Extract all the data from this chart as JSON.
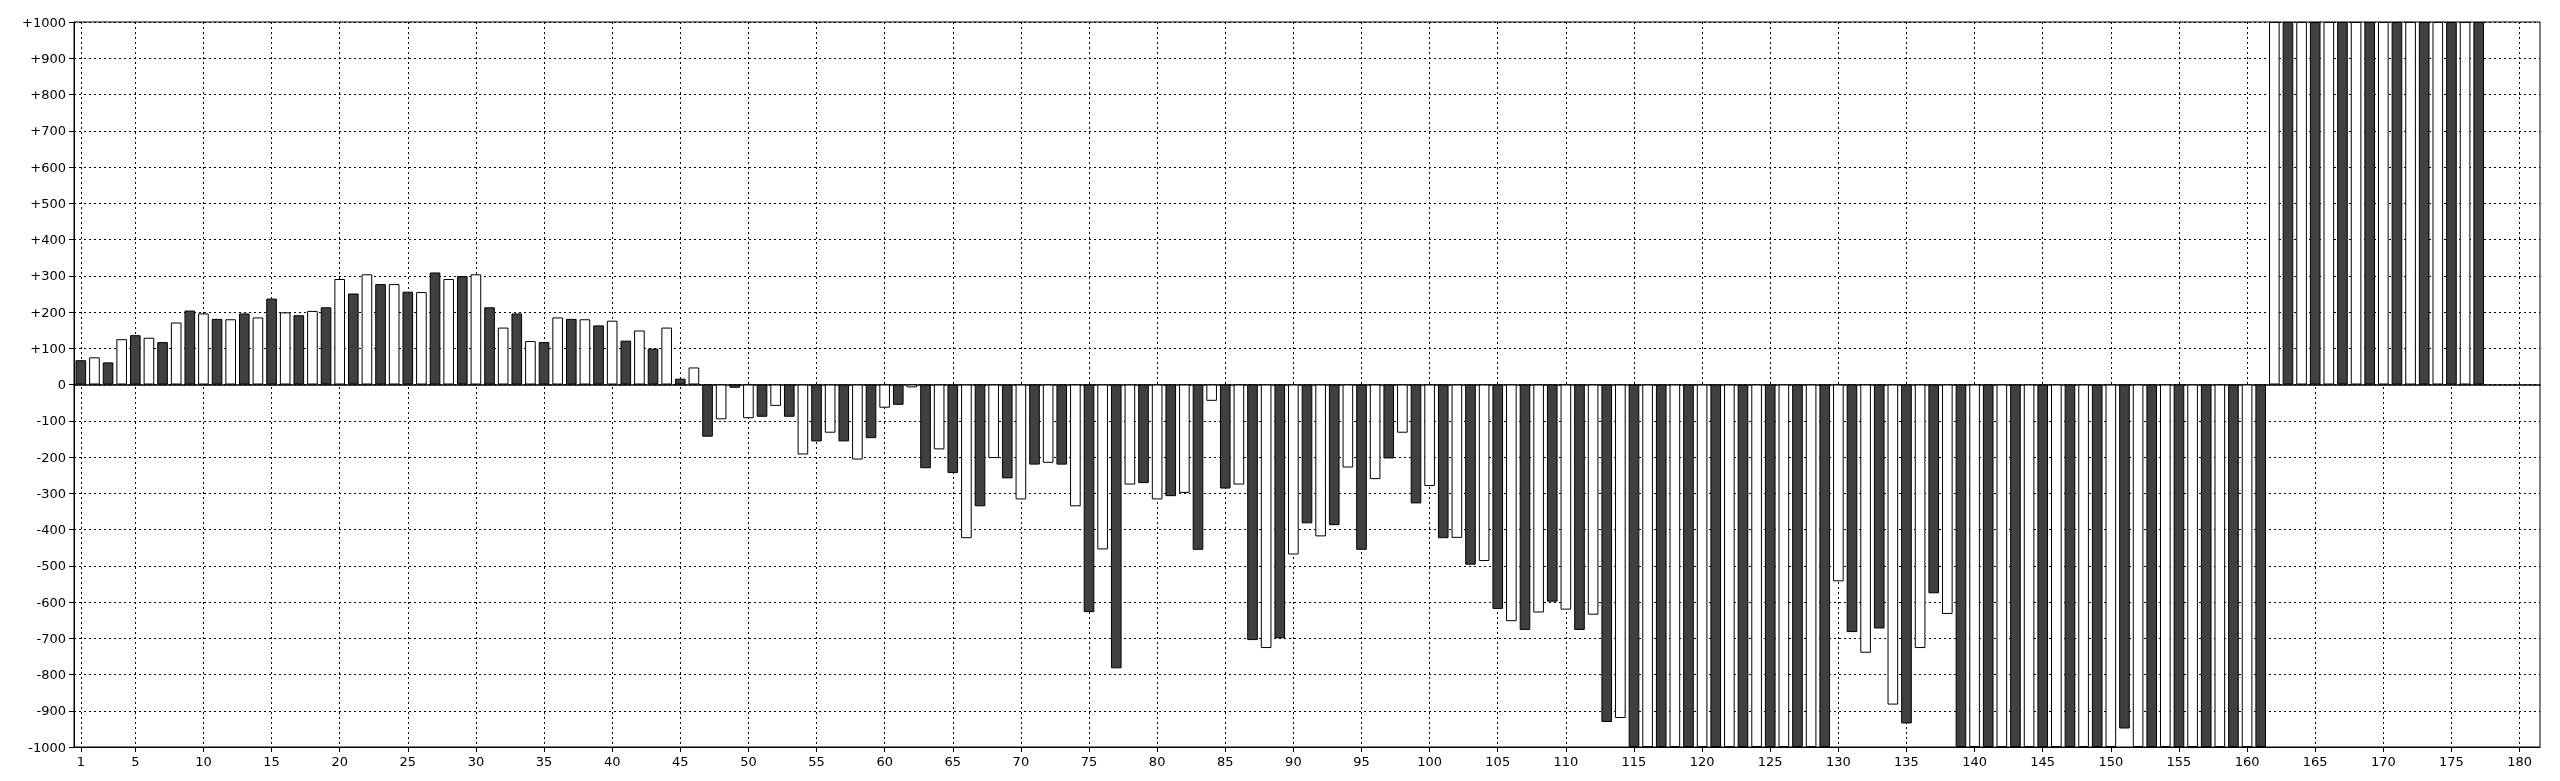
{
  "chart_data": {
    "type": "bar",
    "x": [
      1,
      2,
      3,
      4,
      5,
      6,
      7,
      8,
      9,
      10,
      11,
      12,
      13,
      14,
      15,
      16,
      17,
      18,
      19,
      20,
      21,
      22,
      23,
      24,
      25,
      26,
      27,
      28,
      29,
      30,
      31,
      32,
      33,
      34,
      35,
      36,
      37,
      38,
      39,
      40,
      41,
      42,
      43,
      44,
      45,
      46,
      47,
      48,
      49,
      50,
      51,
      52,
      53,
      54,
      55,
      56,
      57,
      58,
      59,
      60,
      61,
      62,
      63,
      64,
      65,
      66,
      67,
      68,
      69,
      70,
      71,
      72,
      73,
      74,
      75,
      76,
      77,
      78,
      79,
      80,
      81,
      82,
      83,
      84,
      85,
      86,
      87,
      88,
      89,
      90,
      91,
      92,
      93,
      94,
      95,
      96,
      97,
      98,
      99,
      100,
      101,
      102,
      103,
      104,
      105,
      106,
      107,
      108,
      109,
      110,
      111,
      112,
      113,
      114,
      115,
      116,
      117,
      118,
      119,
      120,
      121,
      122,
      123,
      124,
      125,
      126,
      127,
      128,
      129,
      130,
      131,
      132,
      133,
      134,
      135,
      136,
      137,
      138,
      139,
      140,
      141,
      142,
      143,
      144,
      145,
      146,
      147,
      148,
      149,
      150,
      151,
      152,
      153,
      154,
      155,
      156,
      157,
      158,
      159,
      160,
      161,
      162,
      163,
      164,
      165,
      166,
      167,
      168,
      169,
      170,
      171,
      172,
      173,
      174,
      175,
      176,
      177
    ],
    "values": [
      67,
      75,
      61,
      125,
      136,
      129,
      117,
      171,
      204,
      196,
      181,
      180,
      196,
      185,
      237,
      199,
      191,
      203,
      213,
      291,
      251,
      304,
      277,
      277,
      256,
      255,
      309,
      291,
      299,
      304,
      213,
      157,
      196,
      120,
      117,
      185,
      181,
      180,
      163,
      176,
      121,
      149,
      99,
      157,
      16,
      47,
      -144,
      -96,
      -9,
      -93,
      -89,
      -59,
      -89,
      -193,
      -157,
      -133,
      -157,
      -207,
      -148,
      -64,
      -56,
      -8,
      -231,
      -179,
      -244,
      -424,
      -336,
      -203,
      -259,
      -317,
      -221,
      -216,
      -221,
      -336,
      -628,
      -455,
      -783,
      -276,
      -272,
      -317,
      -308,
      -299,
      -456,
      -45,
      -287,
      -276,
      -705,
      -727,
      -700,
      -469,
      -383,
      -419,
      -388,
      -229,
      -456,
      -261,
      -204,
      -133,
      -328,
      -280,
      -424,
      -423,
      -497,
      -487,
      -619,
      -653,
      -677,
      -629,
      -599,
      -621,
      -677,
      -635,
      -931,
      -920,
      -1000,
      -1000,
      -1000,
      -1000,
      -1000,
      -1000,
      -1000,
      -1000,
      -1000,
      -1000,
      -1000,
      -1000,
      -1000,
      -1000,
      -1000,
      -543,
      -683,
      -740,
      -673,
      -883,
      -935,
      -727,
      -576,
      -633,
      -1000,
      -1000,
      -1000,
      -1000,
      -1000,
      -1000,
      -1000,
      -1000,
      -1000,
      -1000,
      -1000,
      -1000,
      -949,
      -1000,
      -1000,
      -1000,
      -1000,
      -1000,
      -1000,
      -1000,
      -1000,
      -1000,
      -1000,
      1000,
      1000,
      1000,
      1000,
      1000,
      1000,
      1000,
      1000,
      1000,
      1000,
      1000,
      1000,
      1000,
      1000,
      1000,
      1000
    ],
    "colors": [
      "#404040",
      "#ffffff",
      "#404040",
      "#ffffff",
      "#404040",
      "#ffffff",
      "#404040",
      "#ffffff",
      "#404040",
      "#ffffff",
      "#404040",
      "#ffffff",
      "#404040",
      "#ffffff",
      "#404040",
      "#ffffff",
      "#404040",
      "#ffffff",
      "#404040",
      "#ffffff",
      "#404040",
      "#ffffff",
      "#404040",
      "#ffffff",
      "#404040",
      "#ffffff",
      "#404040",
      "#ffffff",
      "#404040",
      "#ffffff",
      "#404040",
      "#ffffff",
      "#404040",
      "#ffffff",
      "#404040",
      "#ffffff",
      "#404040",
      "#ffffff",
      "#404040",
      "#ffffff",
      "#404040",
      "#ffffff",
      "#404040",
      "#ffffff",
      "#404040",
      "#ffffff",
      "#404040",
      "#ffffff",
      "#404040",
      "#ffffff",
      "#404040",
      "#ffffff",
      "#404040",
      "#ffffff",
      "#404040",
      "#ffffff",
      "#404040",
      "#ffffff",
      "#404040",
      "#ffffff",
      "#404040",
      "#ffffff",
      "#404040",
      "#ffffff",
      "#404040",
      "#ffffff",
      "#404040",
      "#ffffff",
      "#404040",
      "#ffffff",
      "#404040",
      "#ffffff",
      "#404040",
      "#ffffff",
      "#404040",
      "#ffffff",
      "#404040",
      "#ffffff",
      "#404040",
      "#ffffff",
      "#404040",
      "#ffffff",
      "#404040",
      "#ffffff",
      "#404040",
      "#ffffff",
      "#404040",
      "#ffffff",
      "#404040",
      "#ffffff",
      "#404040",
      "#ffffff",
      "#404040",
      "#ffffff",
      "#404040",
      "#ffffff",
      "#404040",
      "#ffffff",
      "#404040",
      "#ffffff",
      "#404040",
      "#ffffff",
      "#404040",
      "#ffffff",
      "#404040",
      "#ffffff",
      "#404040",
      "#ffffff",
      "#404040",
      "#ffffff",
      "#404040",
      "#ffffff",
      "#404040",
      "#ffffff",
      "#404040",
      "#ffffff",
      "#404040",
      "#ffffff",
      "#404040",
      "#ffffff",
      "#404040",
      "#ffffff",
      "#404040",
      "#ffffff",
      "#404040",
      "#ffffff",
      "#404040",
      "#ffffff",
      "#404040",
      "#ffffff",
      "#404040",
      "#ffffff",
      "#404040",
      "#ffffff",
      "#404040",
      "#ffffff",
      "#404040",
      "#ffffff",
      "#404040",
      "#ffffff",
      "#404040",
      "#ffffff",
      "#404040",
      "#ffffff",
      "#404040",
      "#ffffff",
      "#404040",
      "#ffffff",
      "#404040",
      "#ffffff",
      "#404040",
      "#ffffff",
      "#404040",
      "#ffffff",
      "#404040",
      "#ffffff",
      "#404040",
      "#ffffff",
      "#404040",
      "#ffffff",
      "#404040",
      "#ffffff",
      "#404040",
      "#ffffff",
      "#404040",
      "#ffffff",
      "#404040",
      "#ffffff",
      "#404040",
      "#ffffff",
      "#404040",
      "#ffffff",
      "#404040",
      "#ffffff",
      "#404040",
      "#ffffff",
      "#404040"
    ],
    "xlim": [
      0.5,
      181.5
    ],
    "xticks": [
      1,
      5,
      10,
      15,
      20,
      25,
      30,
      35,
      40,
      45,
      50,
      55,
      60,
      65,
      70,
      75,
      80,
      85,
      90,
      95,
      100,
      105,
      110,
      115,
      120,
      125,
      130,
      135,
      140,
      145,
      150,
      155,
      160,
      165,
      170,
      175,
      180
    ],
    "ylim": [
      -1000,
      1000
    ],
    "yticks": [
      -1000,
      -900,
      -800,
      -700,
      -600,
      -500,
      -400,
      -300,
      -200,
      -100,
      0,
      {
        "value": 100,
        "label": "+100"
      },
      {
        "value": 200,
        "label": "+200"
      },
      {
        "value": 300,
        "label": "+300"
      },
      {
        "value": 400,
        "label": "+400"
      },
      {
        "value": 500,
        "label": "+500"
      },
      {
        "value": 600,
        "label": "+600"
      },
      {
        "value": 700,
        "label": "+700"
      },
      {
        "value": 800,
        "label": "+800"
      },
      {
        "value": 900,
        "label": "+900"
      },
      {
        "value": 1000,
        "label": "+1000"
      }
    ],
    "grid": true
  }
}
